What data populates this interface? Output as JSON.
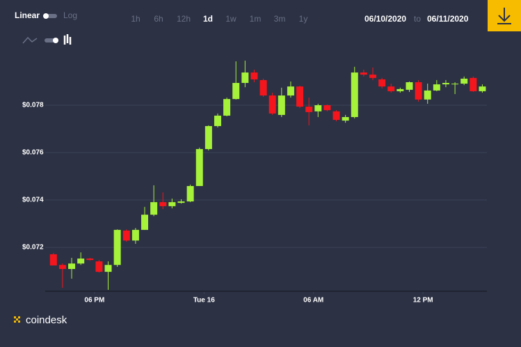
{
  "ui": {
    "scale_options": [
      "Linear",
      "Log"
    ],
    "ranges": [
      "1h",
      "6h",
      "12h",
      "1d",
      "1w",
      "1m",
      "3m",
      "1y"
    ],
    "date_from": "06/10/2020",
    "date_separator": "to",
    "date_to": "06/11/2020",
    "brand": "coindesk"
  },
  "chart_data": {
    "type": "candlestick",
    "up_color": "#a6f23a",
    "down_color": "#f5161d",
    "grid": true,
    "x": [
      -2.25,
      -1.75,
      -1.25,
      -0.75,
      -0.25,
      0.25,
      0.75,
      1.25,
      1.75,
      2.25,
      2.75,
      3.25,
      3.75,
      4.25,
      4.75,
      5.25,
      5.75,
      6.25,
      6.75,
      7.25,
      7.75,
      8.25,
      8.75,
      9.25,
      9.75,
      10.25,
      10.75,
      11.25,
      11.75,
      12.25,
      12.75,
      13.25,
      13.75,
      14.25,
      14.75,
      15.25,
      15.75,
      16.25,
      16.75,
      17.25,
      17.75,
      18.25,
      18.75,
      19.25,
      19.75,
      20.25,
      20.75,
      21.25
    ],
    "open": [
      0.07171,
      0.07126,
      0.07109,
      0.07132,
      0.07153,
      0.07141,
      0.07097,
      0.07126,
      0.07271,
      0.07229,
      0.07274,
      0.07338,
      0.07391,
      0.07374,
      0.07388,
      0.07394,
      0.07459,
      0.07615,
      0.07712,
      0.07756,
      0.07826,
      0.07894,
      0.07938,
      0.07906,
      0.07841,
      0.07759,
      0.07841,
      0.07879,
      0.07794,
      0.07774,
      0.078,
      0.07774,
      0.07735,
      0.0775,
      0.07938,
      0.07929,
      0.07909,
      0.07879,
      0.07859,
      0.07865,
      0.07897,
      0.07824,
      0.07862,
      0.07888,
      0.07888,
      0.07891,
      0.07915,
      0.07859
    ],
    "high": [
      0.07176,
      0.07132,
      0.07156,
      0.07179,
      0.07156,
      0.07147,
      0.07141,
      0.07276,
      0.07276,
      0.07282,
      0.07371,
      0.07462,
      0.07432,
      0.07406,
      0.07403,
      0.07465,
      0.07621,
      0.07715,
      0.07765,
      0.07832,
      0.07985,
      0.07988,
      0.0795,
      0.07912,
      0.07853,
      0.07874,
      0.079,
      0.07882,
      0.07832,
      0.07806,
      0.07803,
      0.07779,
      0.07759,
      0.07962,
      0.0795,
      0.07959,
      0.07915,
      0.07891,
      0.07874,
      0.079,
      0.07906,
      0.07891,
      0.07906,
      0.07906,
      0.07897,
      0.07921,
      0.07921,
      0.07888
    ],
    "low": [
      0.07124,
      0.07029,
      0.07068,
      0.07126,
      0.07144,
      0.07094,
      0.07021,
      0.07118,
      0.07224,
      0.07215,
      0.07274,
      0.07332,
      0.07362,
      0.07365,
      0.07385,
      0.07391,
      0.07459,
      0.07609,
      0.07706,
      0.07753,
      0.07824,
      0.07876,
      0.07897,
      0.07835,
      0.07759,
      0.0775,
      0.07832,
      0.07788,
      0.07715,
      0.0775,
      0.07774,
      0.07732,
      0.07726,
      0.07744,
      0.07921,
      0.07906,
      0.07871,
      0.07853,
      0.07853,
      0.07856,
      0.07815,
      0.07806,
      0.07859,
      0.07876,
      0.07847,
      0.07885,
      0.07856,
      0.07853
    ],
    "close": [
      0.07124,
      0.07109,
      0.07132,
      0.07153,
      0.07147,
      0.07097,
      0.07126,
      0.07274,
      0.07229,
      0.07274,
      0.07338,
      0.07391,
      0.07374,
      0.07391,
      0.07394,
      0.07459,
      0.07615,
      0.07712,
      0.07756,
      0.07826,
      0.07894,
      0.07938,
      0.07909,
      0.07841,
      0.07765,
      0.07841,
      0.07879,
      0.07794,
      0.07771,
      0.078,
      0.07779,
      0.07738,
      0.0775,
      0.07938,
      0.07929,
      0.07915,
      0.07879,
      0.07859,
      0.07868,
      0.07897,
      0.07824,
      0.07862,
      0.07888,
      0.07894,
      0.07891,
      0.07912,
      0.07859,
      0.07879
    ],
    "xlim": [
      -2.7,
      21.5
    ],
    "xticks": [
      {
        "value": 0,
        "label": "06 PM"
      },
      {
        "value": 6,
        "label": "Tue 16"
      },
      {
        "value": 12,
        "label": "06 AM"
      },
      {
        "value": 18,
        "label": "12 PM"
      }
    ],
    "ylim": [
      0.07015,
      0.07994
    ],
    "yticks": [
      {
        "value": 0.072,
        "label": "$0.072"
      },
      {
        "value": 0.074,
        "label": "$0.074"
      },
      {
        "value": 0.076,
        "label": "$0.076"
      },
      {
        "value": 0.078,
        "label": "$0.078"
      }
    ]
  }
}
